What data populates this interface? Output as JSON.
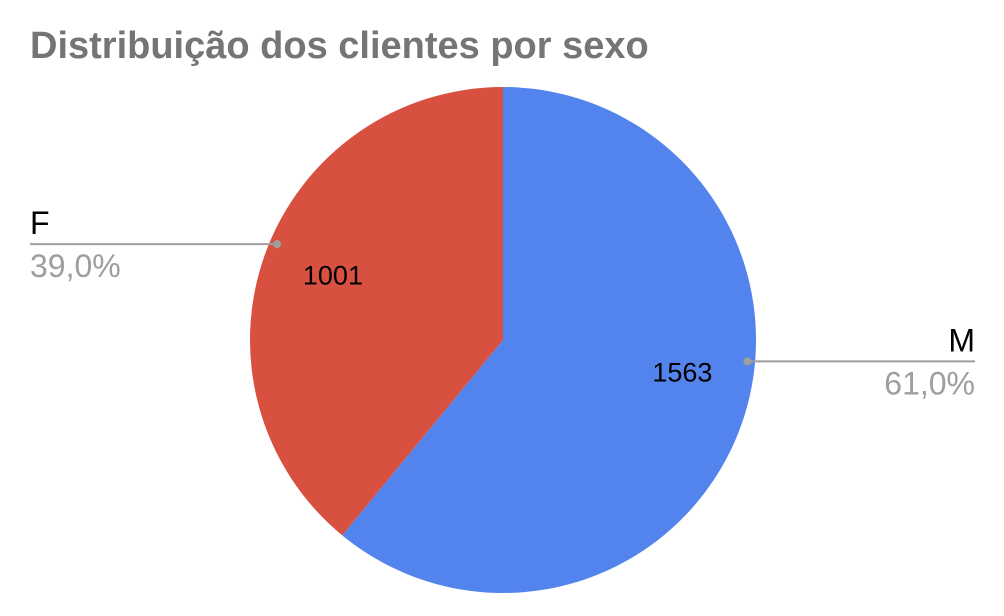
{
  "chart_data": {
    "type": "pie",
    "title": "Distribuição dos clientes por sexo",
    "slices": [
      {
        "name": "M",
        "value": 1563,
        "percent_label": "61,0%",
        "color": "#5384ED"
      },
      {
        "name": "F",
        "value": 1001,
        "percent_label": "39,0%",
        "color": "#D85140"
      }
    ],
    "label_line_color": "#9e9e9e"
  }
}
